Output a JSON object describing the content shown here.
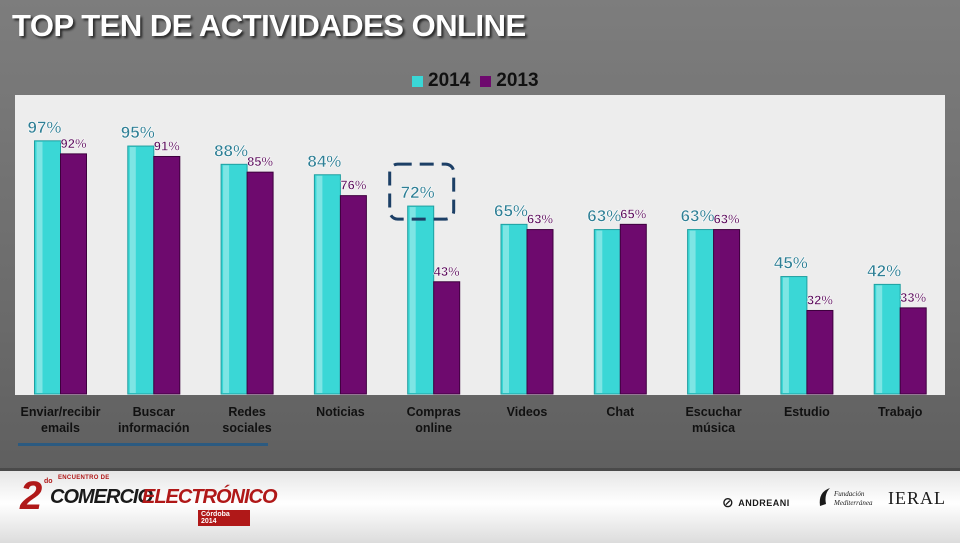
{
  "title": "TOP TEN DE ACTIVIDADES ONLINE",
  "colors": {
    "series_2014": "#3ad7d6",
    "series_2013": "#6e0a6e",
    "plot_bg": "#ededed",
    "highlight_box": "#1c3f66"
  },
  "legend": {
    "items": [
      "2014",
      "2013"
    ],
    "placement": "top-center"
  },
  "chart_data": {
    "type": "bar",
    "title": "TOP TEN DE ACTIVIDADES ONLINE",
    "xlabel": "",
    "ylabel": "",
    "ylim": [
      0,
      100
    ],
    "grid": false,
    "legend_placement": "top-center",
    "categories": [
      [
        "Enviar/recibir",
        "emails"
      ],
      [
        "Buscar",
        "información"
      ],
      [
        "Redes",
        "sociales"
      ],
      [
        "Noticias"
      ],
      [
        "Compras",
        "online"
      ],
      [
        "Videos"
      ],
      [
        "Chat"
      ],
      [
        "Escuchar",
        "música"
      ],
      [
        "Estudio"
      ],
      [
        "Trabajo"
      ]
    ],
    "series": [
      {
        "name": "2014",
        "values": [
          97,
          95,
          88,
          84,
          72,
          65,
          63,
          63,
          45,
          42
        ],
        "labels": [
          "97%",
          "95%",
          "88%",
          "84%",
          "72%",
          "65%",
          "63%",
          "63%",
          "45%",
          "42%"
        ]
      },
      {
        "name": "2013",
        "values": [
          92,
          91,
          85,
          76,
          43,
          63,
          65,
          63,
          32,
          33
        ],
        "labels": [
          "92%",
          "91%",
          "85%",
          "76%",
          "43%",
          "63%",
          "65%",
          "63%",
          "32%",
          "33%"
        ]
      }
    ],
    "highlighted_category": "Compras online"
  },
  "footer": {
    "event_number": "2",
    "event_superscript": "do",
    "event_top": "ENCUENTRO DE",
    "event_word1": "COMERCIO",
    "event_word2": "ELECTRÓNICO",
    "event_city": "Córdoba 2014",
    "sponsor_andreani": "ANDREANI",
    "sponsor_fundacion": "Fundación Mediterránea",
    "sponsor_ieral": "IERAL"
  }
}
